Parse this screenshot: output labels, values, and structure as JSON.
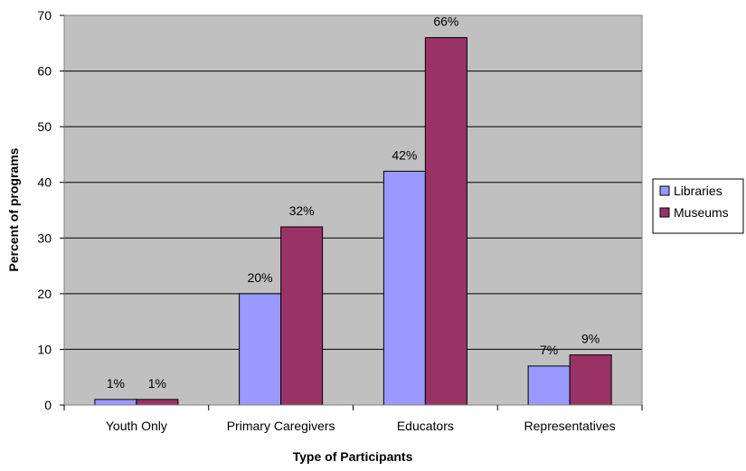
{
  "chart_data": {
    "type": "bar",
    "title": "",
    "xlabel": "Type of Participants",
    "ylabel": "Percent of programs",
    "categories": [
      "Youth Only",
      "Primary Caregivers",
      "Educators",
      "Representatives"
    ],
    "series": [
      {
        "name": "Libraries",
        "values": [
          1,
          20,
          42,
          7
        ],
        "labels": [
          "1%",
          "20%",
          "42%",
          "7%"
        ],
        "color": "#9999ff"
      },
      {
        "name": "Museums",
        "values": [
          1,
          32,
          66,
          9
        ],
        "labels": [
          "1%",
          "32%",
          "66%",
          "9%"
        ],
        "color": "#993366"
      }
    ],
    "ylim": [
      0,
      70
    ],
    "yticks": [
      0,
      10,
      20,
      30,
      40,
      50,
      60,
      70
    ],
    "grid": true,
    "plot_background": "#c0c0c0",
    "legend_position": "right"
  }
}
